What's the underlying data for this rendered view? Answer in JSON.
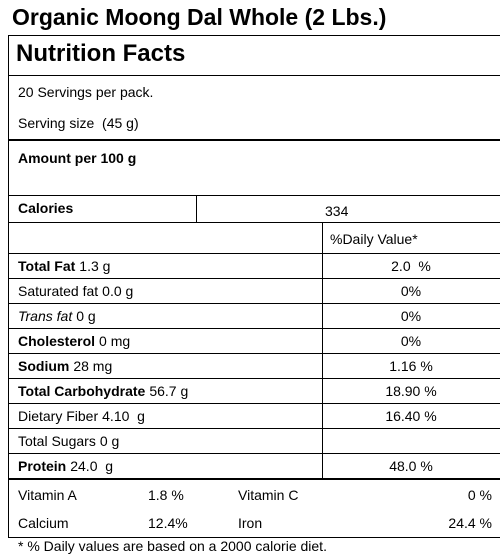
{
  "title": "Organic Moong Dal Whole (2 Lbs.)",
  "heading": "Nutrition Facts",
  "servings": "20 Servings per pack.",
  "serving_size": "Serving size  (45 g)",
  "amount_per": "Amount per 100 g",
  "calories": {
    "label": "Calories",
    "value": "334"
  },
  "daily_value_header": "%Daily Value*",
  "rows": [
    {
      "name": "Total Fat",
      "amount": "1.3 g",
      "dv": "2.0  %",
      "style": "bold"
    },
    {
      "name": "Saturated fat",
      "amount": "0.0 g",
      "dv": "0%",
      "style": "normal"
    },
    {
      "name": "Trans fat",
      "amount": "0 g",
      "dv": "0%",
      "style": "italic"
    },
    {
      "name": "Cholesterol",
      "amount": "0 mg",
      "dv": "0%",
      "style": "bold"
    },
    {
      "name": "Sodium",
      "amount": "28 mg",
      "dv": "1.16 %",
      "style": "bold"
    },
    {
      "name": "Total Carbohydrate",
      "amount": "56.7 g",
      "dv": "18.90 %",
      "style": "bold"
    },
    {
      "name": "Dietary Fiber",
      "amount": "4.10  g",
      "dv": "16.40 %",
      "style": "normal"
    },
    {
      "name": "Total Sugars",
      "amount": "0 g",
      "style": "normal"
    },
    {
      "name": "Protein",
      "amount": "24.0  g",
      "dv": "48.0 %",
      "style": "bold"
    }
  ],
  "vitamins": [
    [
      {
        "name": "Vitamin A",
        "value": "1.8 %"
      },
      {
        "name": "Vitamin C",
        "value": "0 %"
      }
    ],
    [
      {
        "name": "Calcium",
        "value": "12.4%"
      },
      {
        "name": "Iron",
        "value": "24.4 %"
      }
    ]
  ],
  "footnote": "* % Daily values are based on a 2000 calorie diet."
}
